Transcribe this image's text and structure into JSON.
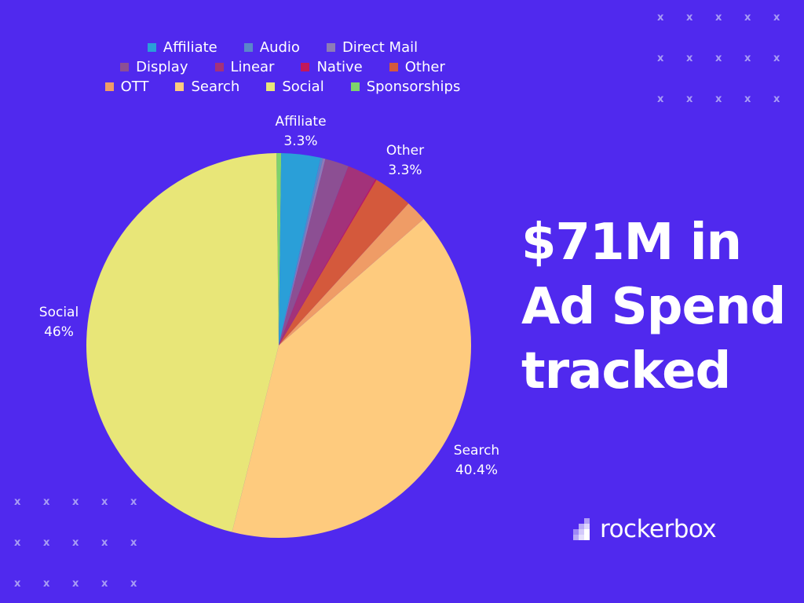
{
  "chart_data": {
    "type": "pie",
    "legend_position": "top",
    "slices": [
      {
        "name": "Sponsorships",
        "value": 0.4,
        "color": "#7ed36b"
      },
      {
        "name": "Affiliate",
        "value": 3.3,
        "color": "#2a9fd8"
      },
      {
        "name": "Audio",
        "value": 0.2,
        "color": "#5a86c9"
      },
      {
        "name": "Direct Mail",
        "value": 0.2,
        "color": "#8d7bb6"
      },
      {
        "name": "Display",
        "value": 2.0,
        "color": "#8c4f93"
      },
      {
        "name": "Linear",
        "value": 2.5,
        "color": "#a3327a"
      },
      {
        "name": "Native",
        "value": 0.1,
        "color": "#c2185b"
      },
      {
        "name": "Other",
        "value": 3.3,
        "color": "#d4593c"
      },
      {
        "name": "OTT",
        "value": 1.8,
        "color": "#ef9c66"
      },
      {
        "name": "Search",
        "value": 40.4,
        "color": "#fecb7e"
      },
      {
        "name": "Social",
        "value": 46,
        "color": "#e8e678"
      }
    ],
    "slice_labels": [
      {
        "name": "Affiliate",
        "pct": "3.3%"
      },
      {
        "name": "Other",
        "pct": "3.3%"
      },
      {
        "name": "Social",
        "pct": "46%"
      },
      {
        "name": "Search",
        "pct": "40.4%"
      }
    ],
    "legend_rows": [
      [
        "Affiliate",
        "Audio",
        "Direct Mail"
      ],
      [
        "Display",
        "Linear",
        "Native",
        "Other"
      ],
      [
        "OTT",
        "Search",
        "Social",
        "Sponsorships"
      ]
    ]
  },
  "headline": {
    "line1": "$71M in",
    "line2": "Ad Spend",
    "line3": "tracked"
  },
  "brand": {
    "name": "rockerbox"
  },
  "decoration": {
    "mark": "x"
  },
  "colors": {
    "background": "#5029ee",
    "text": "#ffffff"
  }
}
